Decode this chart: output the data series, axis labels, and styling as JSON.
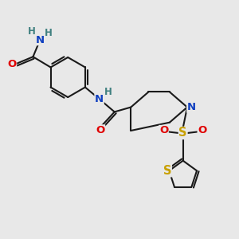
{
  "bg_color": "#e8e8e8",
  "bond_color": "#1a1a1a",
  "bond_width": 1.5,
  "atom_colors": {
    "C": "#1a1a1a",
    "N": "#1040c0",
    "O": "#e00000",
    "S_sulfonyl": "#c8a000",
    "S_thiophene": "#c8a000",
    "H": "#408080"
  },
  "font_size": 8.5,
  "figsize": [
    3.0,
    3.0
  ],
  "dpi": 100
}
